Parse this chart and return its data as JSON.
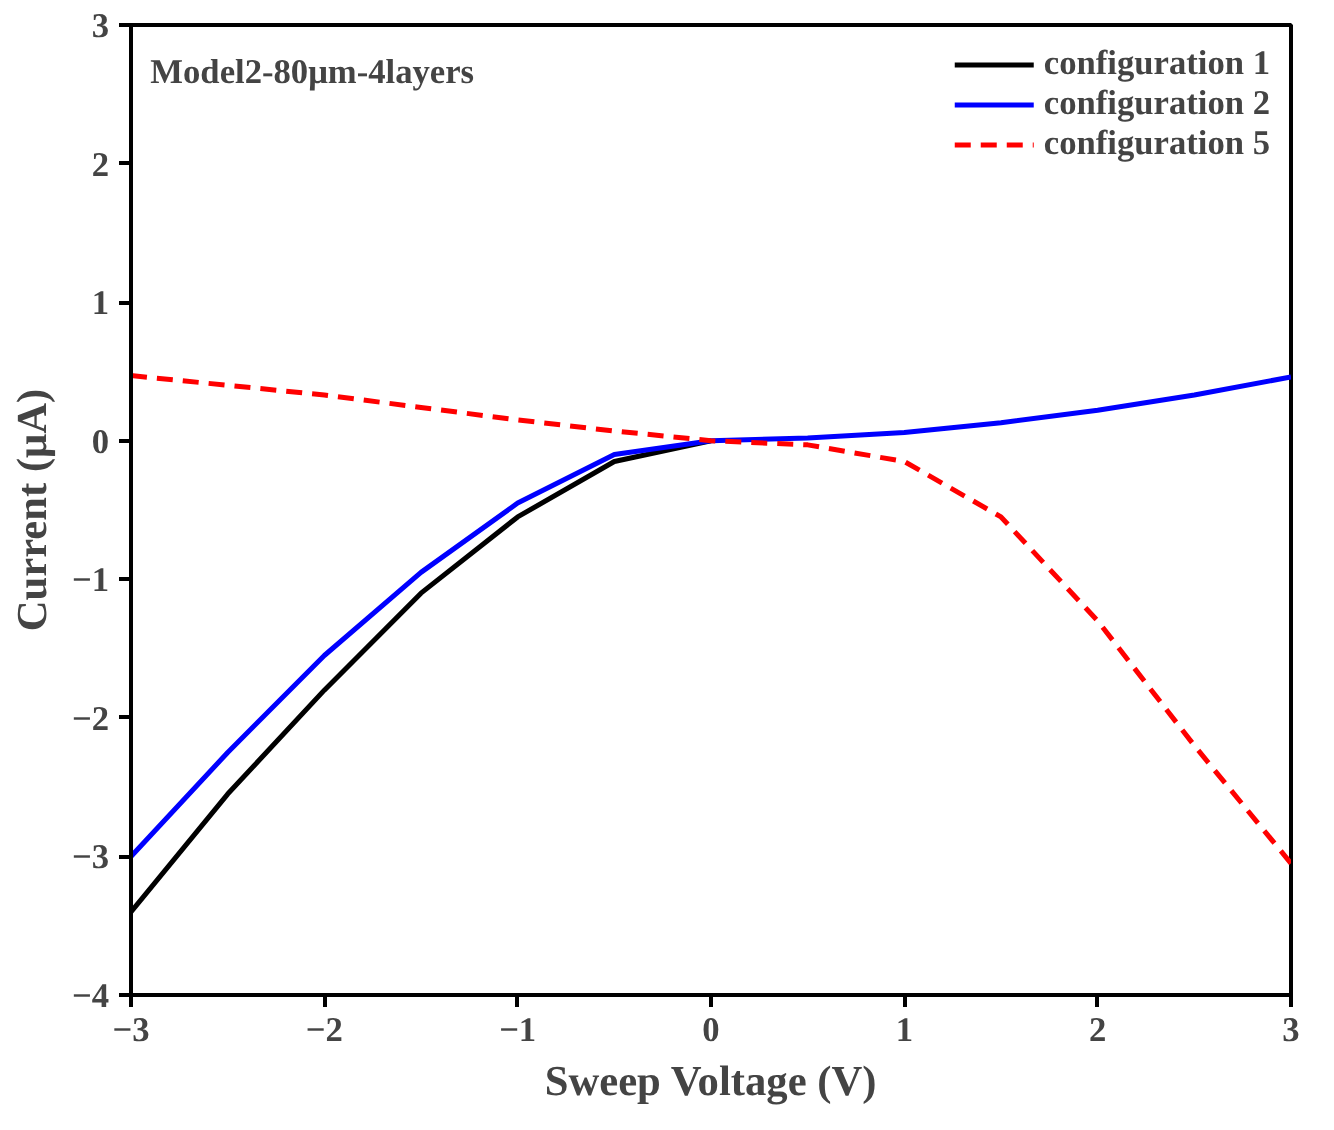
{
  "chart_data": {
    "type": "line",
    "xlabel": "Sweep Voltage (V)",
    "ylabel": "Current (μA)",
    "annotations": [
      "Model2-80μm-4layers"
    ],
    "xlim": [
      -3,
      3
    ],
    "ylim": [
      -4,
      3
    ],
    "xticks": [
      -3,
      -2,
      -1,
      0,
      1,
      2,
      3
    ],
    "yticks": [
      -4,
      -3,
      -2,
      -1,
      0,
      1,
      2,
      3
    ],
    "grid": false,
    "legend": "top right",
    "marker": "none",
    "x": [
      -3,
      -2.5,
      -2,
      -1.5,
      -1,
      -0.5,
      0,
      0.5,
      1,
      1.5,
      2,
      2.5,
      3
    ],
    "series": [
      {
        "name": "configuration 1",
        "color": "#000000",
        "values": [
          -3.4,
          -2.55,
          -1.8,
          -1.1,
          -0.55,
          -0.15,
          0,
          null,
          null,
          null,
          null,
          null,
          null
        ]
      },
      {
        "name": "configuration 2",
        "color": "#0000ff",
        "values": [
          -3.0,
          -2.25,
          -1.55,
          -0.95,
          -0.45,
          -0.1,
          0,
          0.02,
          0.06,
          0.13,
          0.22,
          0.33,
          0.46
        ]
      },
      {
        "name": "configuration 5",
        "color": "#ff0000",
        "line_style": "dashed",
        "values": [
          0.47,
          0.4,
          0.33,
          0.24,
          0.15,
          0.07,
          0.0,
          -0.03,
          -0.15,
          -0.55,
          -1.3,
          -2.2,
          -3.05
        ]
      }
    ]
  }
}
